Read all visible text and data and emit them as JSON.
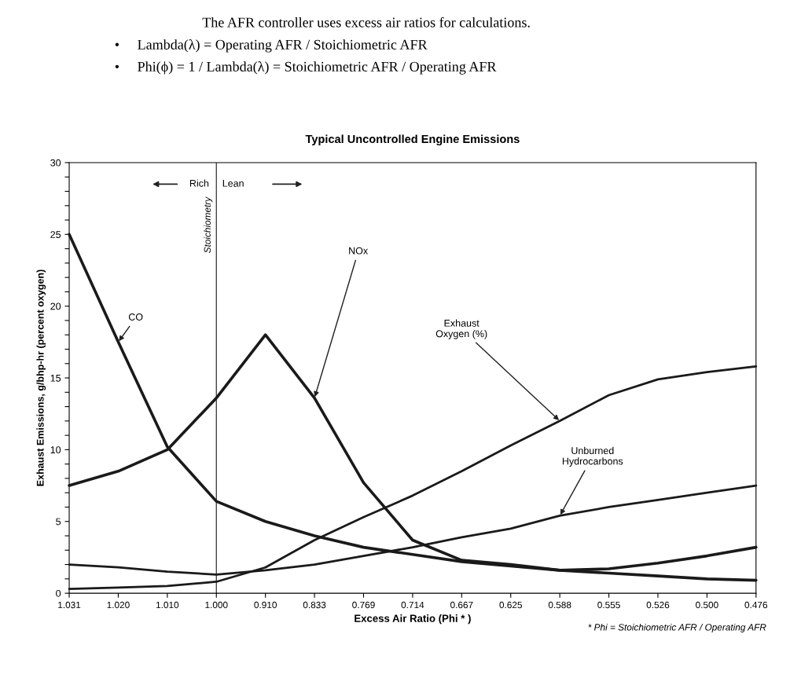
{
  "chart_data": {
    "type": "line",
    "title": "Typical Uncontrolled Engine Emissions",
    "xlabel": "Excess Air Ratio (Phi * )",
    "ylabel": "Exhaust Emissions, g/bhp-hr (percent oxygen)",
    "categories": [
      "1.031",
      "1.020",
      "1.010",
      "1.000",
      "0.910",
      "0.833",
      "0.769",
      "0.714",
      "0.667",
      "0.625",
      "0.588",
      "0.555",
      "0.526",
      "0.500",
      "0.476"
    ],
    "series": [
      {
        "name": "CO",
        "color": "#1a1a1a",
        "values": [
          25.0,
          17.5,
          10.2,
          6.4,
          5.0,
          4.0,
          3.2,
          2.7,
          2.2,
          1.9,
          1.6,
          1.7,
          2.1,
          2.6,
          3.2
        ]
      },
      {
        "name": "NOx",
        "color": "#1a1a1a",
        "values": [
          7.5,
          8.5,
          10.0,
          13.6,
          18.0,
          13.6,
          7.7,
          3.7,
          2.3,
          2.0,
          1.6,
          1.4,
          1.2,
          1.0,
          0.9
        ]
      },
      {
        "name": "Exhaust\nOxygen (%)",
        "color": "#1a1a1a",
        "values": [
          0.3,
          0.4,
          0.5,
          0.8,
          1.8,
          3.7,
          5.3,
          6.8,
          8.5,
          10.3,
          12.0,
          13.8,
          14.9,
          15.4,
          15.8
        ]
      },
      {
        "name": "Unburned\nHydrocarbons",
        "color": "#1a1a1a",
        "values": [
          2.0,
          1.8,
          1.5,
          1.3,
          1.6,
          2.0,
          2.6,
          3.2,
          3.9,
          4.5,
          5.4,
          6.0,
          6.5,
          7.0,
          7.5
        ]
      }
    ],
    "ylim": [
      0,
      30
    ],
    "yticks": [
      0,
      {
        "value": 1,
        "label": null
      },
      {
        "value": 2,
        "label": null
      },
      {
        "value": 3,
        "label": null
      },
      {
        "value": 4,
        "label": null
      },
      5,
      {
        "value": 6,
        "label": null
      },
      {
        "value": 7,
        "label": null
      },
      {
        "value": 8,
        "label": null
      },
      {
        "value": 9,
        "label": null
      },
      10,
      {
        "value": 11,
        "label": null
      },
      {
        "value": 12,
        "label": null
      },
      {
        "value": 13,
        "label": null
      },
      {
        "value": 14,
        "label": null
      },
      15,
      {
        "value": 16,
        "label": null
      },
      {
        "value": 17,
        "label": null
      },
      {
        "value": 18,
        "label": null
      },
      {
        "value": 19,
        "label": null
      },
      20,
      {
        "value": 21,
        "label": null
      },
      {
        "value": 22,
        "label": null
      },
      {
        "value": 23,
        "label": null
      },
      {
        "value": 24,
        "label": null
      },
      25,
      {
        "value": 26,
        "label": null
      },
      {
        "value": 27,
        "label": null
      },
      {
        "value": 28,
        "label": null
      },
      {
        "value": 29,
        "label": null
      },
      30
    ],
    "ref_lines": [
      {
        "axis": "x",
        "value": "1.000",
        "label": "Stoichiometry",
        "color": "#333333"
      }
    ],
    "grid": false,
    "legend": false,
    "marker": "none",
    "line_style": "solid",
    "annotations": [
      "The AFR controller uses excess air ratios for calculations.",
      "•     Lambda(λ) = Operating AFR / Stoichiometric AFR",
      "•     Phi(ϕ) = 1 / Lambda(λ) = Stoichiometric AFR / Operating AFR",
      "Rich",
      "Lean",
      "* Phi = Stoichiometric AFR / Operating AFR"
    ]
  }
}
